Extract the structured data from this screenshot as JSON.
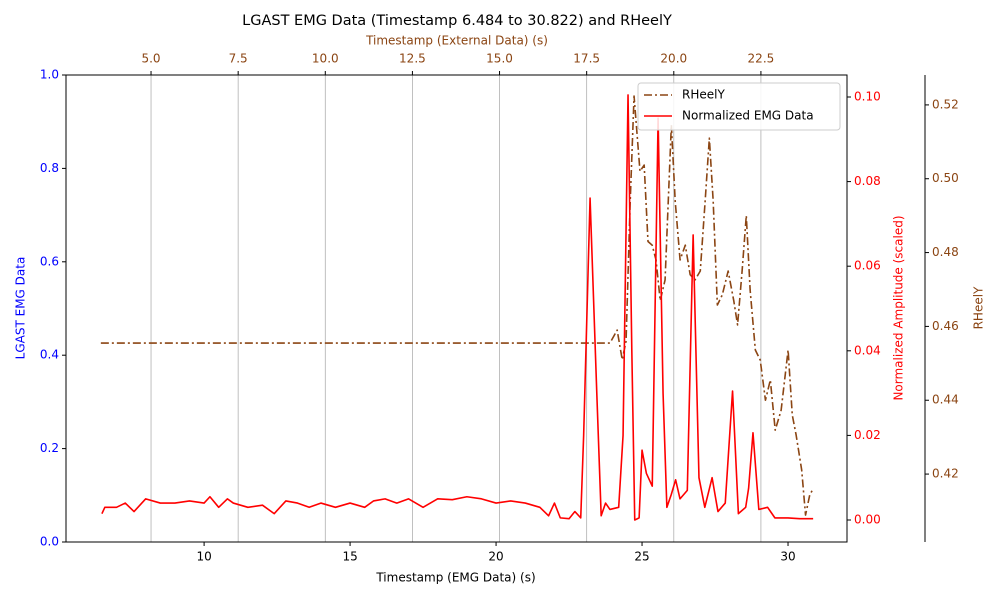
{
  "chart_data": {
    "type": "line",
    "title": "LGAST EMG Data (Timestamp 6.484 to 30.822) and RHeelY",
    "xlabel": "Timestamp (EMG Data) (s)",
    "x2label": "Timestamp (External Data) (s)",
    "ylabel": "LGAST EMG Data",
    "y2label": "Normalized Amplitude (scaled)",
    "y3label": "RHeelY",
    "xlim": [
      5.27,
      32.02
    ],
    "xticks": [
      10,
      15,
      20,
      25,
      30
    ],
    "x2lim": [
      2.56,
      24.97
    ],
    "x2ticks": [
      {
        "value": 5,
        "label": "5.0"
      },
      7.5,
      {
        "value": 10,
        "label": "10.0"
      },
      12.5,
      {
        "value": 15,
        "label": "15.0"
      },
      17.5,
      {
        "value": 20,
        "label": "20.0"
      },
      22.5
    ],
    "ylim": [
      0,
      1
    ],
    "yticks": [
      {
        "value": 0,
        "label": "0.0"
      },
      0.2,
      0.4,
      0.6,
      0.8,
      {
        "value": 1,
        "label": "1.0"
      }
    ],
    "y2lim": [
      -0.0052,
      0.1052
    ],
    "y2ticks": [
      {
        "value": 0,
        "label": "0.00"
      },
      {
        "value": 0.02,
        "label": "0.02"
      },
      {
        "value": 0.04,
        "label": "0.04"
      },
      {
        "value": 0.06,
        "label": "0.06"
      },
      {
        "value": 0.08,
        "label": "0.08"
      },
      {
        "value": 0.1,
        "label": "0.10"
      }
    ],
    "y3lim": [
      0.4016,
      0.5281
    ],
    "y3ticks": [
      0.42,
      0.44,
      0.46,
      0.48,
      {
        "value": 0.5,
        "label": "0.50"
      },
      0.52
    ],
    "grid": true,
    "legend": "upper right",
    "series": [
      {
        "name": "RHeelY",
        "color": "#8b4513",
        "axis": "y3",
        "xaxis": "x2",
        "linestyle": "dashdot",
        "x": [
          3.56,
          18.17,
          18.375,
          18.52,
          18.63,
          18.75,
          18.86,
          19.03,
          19.15,
          19.26,
          19.38,
          19.49,
          19.61,
          19.75,
          19.93,
          20.04,
          20.18,
          20.33,
          20.47,
          20.61,
          20.76,
          20.9,
          21.02,
          21.13,
          21.25,
          21.39,
          21.56,
          21.72,
          21.83,
          21.96,
          22.08,
          22.19,
          22.34,
          22.48,
          22.63,
          22.77,
          22.91,
          23.08,
          23.28,
          23.4,
          23.51,
          23.67,
          23.78,
          23.9,
          23.98
        ],
        "values": [
          0.4555,
          0.4555,
          0.459,
          0.451,
          0.456,
          0.494,
          0.5224,
          0.502,
          0.5037,
          0.483,
          0.482,
          0.478,
          0.467,
          0.4726,
          0.5146,
          0.494,
          0.478,
          0.482,
          0.474,
          0.4726,
          0.475,
          0.494,
          0.511,
          0.494,
          0.4658,
          0.4685,
          0.475,
          0.467,
          0.4604,
          0.475,
          0.49,
          0.4699,
          0.4536,
          0.4509,
          0.44,
          0.4455,
          0.4319,
          0.4373,
          0.4536,
          0.436,
          0.4306,
          0.4211,
          0.4089,
          0.4143,
          0.4157
        ]
      },
      {
        "name": "Normalized EMG Data",
        "color": "#ff0000",
        "axis": "y2",
        "xaxis": "x",
        "linestyle": "solid",
        "x": [
          6.5,
          6.6,
          7.0,
          7.3,
          7.6,
          8.0,
          8.5,
          9.0,
          9.5,
          10.0,
          10.2,
          10.5,
          10.8,
          11.0,
          11.5,
          12.0,
          12.4,
          12.8,
          13.2,
          13.6,
          14.0,
          14.5,
          15.0,
          15.5,
          15.8,
          16.2,
          16.6,
          17.0,
          17.5,
          18.0,
          18.5,
          19.0,
          19.5,
          20.0,
          20.5,
          21.0,
          21.5,
          21.8,
          22.0,
          22.2,
          22.5,
          22.7,
          22.9,
          23.0,
          23.22,
          23.45,
          23.6,
          23.75,
          23.9,
          24.2,
          24.35,
          24.52,
          24.65,
          24.75,
          24.9,
          25.0,
          25.15,
          25.35,
          25.55,
          25.72,
          25.85,
          26.0,
          26.15,
          26.3,
          26.55,
          26.75,
          26.95,
          27.15,
          27.4,
          27.6,
          27.85,
          28.1,
          28.3,
          28.55,
          28.65,
          28.8,
          29.0,
          29.3,
          29.55,
          29.8,
          30.0,
          30.4,
          30.86
        ],
        "values": [
          0.0015,
          0.003,
          0.003,
          0.004,
          0.002,
          0.005,
          0.004,
          0.004,
          0.0045,
          0.004,
          0.0055,
          0.003,
          0.005,
          0.004,
          0.003,
          0.0035,
          0.0015,
          0.0045,
          0.004,
          0.003,
          0.004,
          0.003,
          0.004,
          0.003,
          0.0045,
          0.005,
          0.004,
          0.005,
          0.003,
          0.005,
          0.0048,
          0.0055,
          0.005,
          0.004,
          0.0045,
          0.004,
          0.003,
          0.001,
          0.004,
          0.0005,
          0.0003,
          0.002,
          0.0005,
          0.02,
          0.0761,
          0.03,
          0.001,
          0.004,
          0.0025,
          0.003,
          0.02,
          0.1005,
          0.04,
          0,
          0.0005,
          0.0165,
          0.011,
          0.008,
          0.095,
          0.03,
          0.003,
          0.006,
          0.0095,
          0.005,
          0.007,
          0.0674,
          0.01,
          0.003,
          0.01,
          0.002,
          0.004,
          0.0305,
          0.0015,
          0.003,
          0.0075,
          0.0206,
          0.0025,
          0.003,
          0.0005,
          0.0005,
          0.0005,
          0.0003,
          0.0003
        ]
      }
    ]
  }
}
